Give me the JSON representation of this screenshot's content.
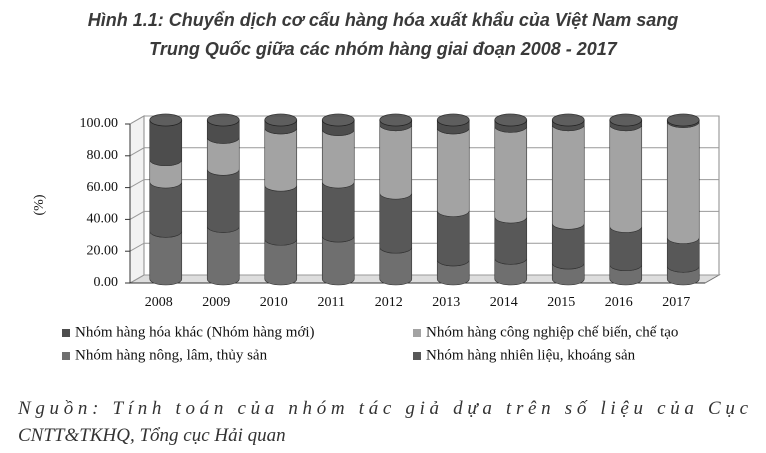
{
  "chart_data": {
    "type": "stacked-cylinder",
    "title": [
      "Hình 1.1: Chuyển dịch cơ cấu hàng hóa xuất khẩu của Việt Nam sang",
      "Trung Quốc giữa các nhóm hàng giai đoạn 2008 - 2017"
    ],
    "y_label": "(%)",
    "categories": [
      "2008",
      "2009",
      "2010",
      "2011",
      "2012",
      "2013",
      "2014",
      "2015",
      "2016",
      "2017"
    ],
    "series": [
      {
        "name": "Nhóm hàng hóa khác (Nhóm hàng mới)",
        "color": "#4d4d4d",
        "values": [
          25,
          11,
          5,
          6,
          3,
          5,
          4,
          3,
          3,
          1
        ]
      },
      {
        "name": "Nhóm hàng công nghiệp chế biến, chế tạo",
        "color": "#a3a3a3",
        "values": [
          14,
          20,
          36,
          33,
          43,
          52,
          57,
          62,
          64,
          73
        ]
      },
      {
        "name": "Nhóm hàng nông, lâm, thủy sản",
        "color": "#6f6f6f",
        "values": [
          30,
          33,
          25,
          27,
          20,
          12,
          13,
          10,
          9,
          8
        ]
      },
      {
        "name": "Nhóm hàng nhiên liệu, khoáng sản",
        "color": "#585858",
        "values": [
          31,
          36,
          34,
          34,
          34,
          31,
          26,
          25,
          24,
          18
        ]
      }
    ],
    "ylim": [
      0,
      100
    ],
    "yticks": [
      {
        "value": 0,
        "label": "0.00"
      },
      {
        "value": 20,
        "label": "20.00"
      },
      {
        "value": 40,
        "label": "40.00"
      },
      {
        "value": 60,
        "label": "60.00"
      },
      {
        "value": 80,
        "label": "80.00"
      },
      {
        "value": 100,
        "label": "100.00"
      }
    ],
    "grid": true,
    "source": [
      "Nguồn: Tính toán của nhóm tác giả dựa trên số liệu của Cục",
      "CNTT&TKHQ, Tổng cục Hải quan"
    ]
  }
}
